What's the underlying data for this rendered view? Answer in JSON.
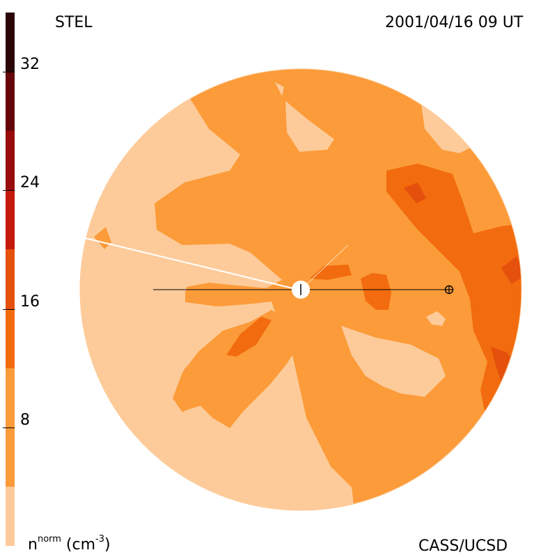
{
  "header": {
    "instrument": "STEL",
    "timestamp": "2001/04/16 09 UT"
  },
  "footer": {
    "quantity_base": "n",
    "quantity_sup": "norm",
    "unit_open": " (cm",
    "unit_sup": "-3",
    "unit_close": ")",
    "credit": "CASS/UCSD"
  },
  "colorbar": {
    "range": [
      0,
      36
    ],
    "tick_labels": [
      "32",
      "24",
      "16",
      "8"
    ],
    "tick_values": [
      32,
      24,
      16,
      8
    ],
    "levels": [
      {
        "from": 0,
        "to": 4,
        "color": "#FDCB9A"
      },
      {
        "from": 4,
        "to": 12,
        "color": "#FC9B39"
      },
      {
        "from": 12,
        "to": 16,
        "color": "#F26B0E"
      },
      {
        "from": 16,
        "to": 20,
        "color": "#E5500D"
      },
      {
        "from": 20,
        "to": 24,
        "color": "#C41A0C"
      },
      {
        "from": 24,
        "to": 28,
        "color": "#990C0C"
      },
      {
        "from": 28,
        "to": 32,
        "color": "#66060A"
      },
      {
        "from": 32,
        "to": 36,
        "color": "#2A0606"
      }
    ]
  },
  "map": {
    "background_color": "#FC9B39",
    "marker_symbols": [
      "sun-marker",
      "earth-marker"
    ]
  }
}
